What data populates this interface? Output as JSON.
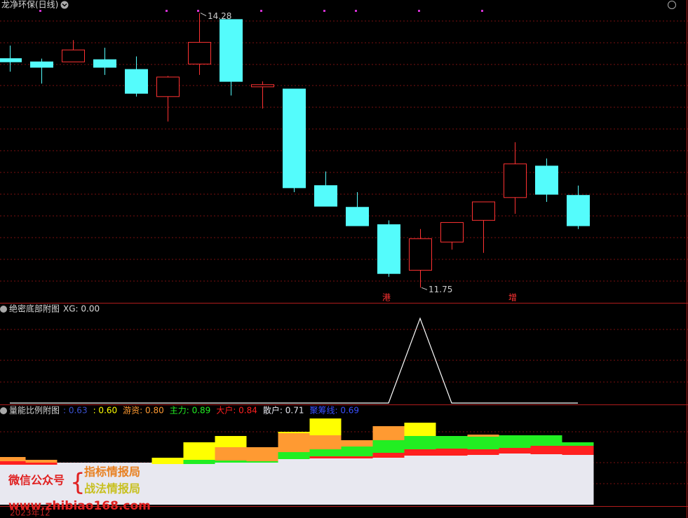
{
  "title": "龙净环保(日线)",
  "date_label": "2023年12",
  "watermark": {
    "left": "微信公众号",
    "brace": "{",
    "line1": "指标情报局",
    "line2": "战法情报局",
    "url": "www.zhibiao168.com"
  },
  "chart_data": [
    {
      "type": "candlestick",
      "up_color": "#ff3232",
      "down_color": "#54fcfc",
      "open": [
        13.86,
        13.83,
        13.83,
        13.85,
        13.76,
        13.51,
        13.81,
        14.22,
        13.6,
        13.58,
        12.69,
        12.49,
        12.33,
        11.91,
        12.17,
        12.37,
        12.58,
        12.87,
        12.6
      ],
      "high": [
        13.98,
        13.86,
        14.03,
        13.96,
        13.88,
        13.7,
        14.28,
        14.22,
        13.65,
        13.58,
        12.82,
        12.63,
        12.37,
        12.29,
        12.35,
        12.54,
        13.09,
        12.94,
        12.69
      ],
      "low": [
        13.74,
        13.63,
        13.83,
        13.71,
        13.51,
        13.28,
        13.71,
        13.52,
        13.4,
        12.63,
        12.5,
        12.32,
        11.85,
        11.75,
        12.1,
        12.07,
        12.43,
        12.54,
        12.29
      ],
      "close": [
        13.83,
        13.78,
        13.94,
        13.78,
        13.54,
        13.69,
        14.01,
        13.65,
        13.62,
        12.67,
        12.5,
        12.32,
        11.88,
        12.2,
        12.35,
        12.54,
        12.89,
        12.61,
        12.32
      ],
      "ylim": [
        11.61,
        14.4
      ],
      "annotations": [
        {
          "text": "14.28",
          "value": 14.28
        },
        {
          "text": "11.75",
          "value": 11.75
        }
      ],
      "markers": [
        null,
        null,
        null,
        null,
        null,
        null,
        null,
        null,
        null,
        null,
        null,
        null,
        "港",
        null,
        null,
        null,
        "增",
        null,
        null
      ],
      "marker_color": "#ff3232"
    },
    {
      "type": "line",
      "title": "绝密底部附图",
      "legend": "XG: 0.00",
      "color": "#ffffff",
      "values": [
        0,
        0,
        0,
        0,
        0,
        0,
        0,
        0,
        0,
        0,
        0,
        0,
        0,
        1,
        0,
        0,
        0,
        0,
        0
      ],
      "ylim": [
        0,
        1.2
      ]
    },
    {
      "type": "overlap-bar",
      "title": "量能比例附图",
      "legend": [
        {
          "text": ": 0.63",
          "color": "#3a50d0"
        },
        {
          "text": ": 0.60",
          "color": "#ffff00"
        },
        {
          "text": "游资: 0.80",
          "color": "#ff9a32"
        },
        {
          "text": "主力: 0.89",
          "color": "#22ee22"
        },
        {
          "text": "大户: 0.84",
          "color": "#ff2020"
        },
        {
          "text": "散户: 0.71",
          "color": "#e8e8f0"
        },
        {
          "text": "聚筹线: 0.69",
          "color": "#3a50ff"
        }
      ],
      "series": [
        {
          "color": "#ffff00",
          "values": [
            0.5,
            0.5,
            0.55,
            0.55,
            0.55,
            0.67,
            0.89,
            0.98,
            0.7,
            1.04,
            1.23,
            0.8,
            0.9,
            1.17,
            0.8,
            0.8,
            0.8,
            0.7,
            0.6
          ]
        },
        {
          "color": "#ff9a32",
          "values": [
            0.68,
            0.64,
            0.55,
            0.55,
            0.55,
            0.55,
            0.6,
            0.82,
            0.82,
            1.02,
            0.99,
            0.92,
            1.12,
            0.9,
            0.9,
            1.0,
            0.9,
            0.85,
            0.8
          ]
        },
        {
          "color": "#22ee22",
          "values": [
            0.5,
            0.5,
            0.55,
            0.55,
            0.55,
            0.55,
            0.64,
            0.63,
            0.62,
            0.75,
            0.79,
            0.83,
            0.92,
            0.98,
            0.98,
            0.97,
            0.99,
            0.99,
            0.89
          ]
        },
        {
          "color": "#ff2020",
          "values": [
            0.62,
            0.6,
            0.55,
            0.55,
            0.55,
            0.55,
            0.55,
            0.58,
            0.58,
            0.6,
            0.69,
            0.69,
            0.74,
            0.79,
            0.8,
            0.79,
            0.81,
            0.84,
            0.84
          ]
        },
        {
          "color": "#e8e8f0",
          "values": [
            0.57,
            0.57,
            0.6,
            0.6,
            0.6,
            0.58,
            0.58,
            0.6,
            0.6,
            0.65,
            0.66,
            0.66,
            0.67,
            0.7,
            0.7,
            0.71,
            0.73,
            0.72,
            0.71
          ]
        }
      ],
      "ylim": [
        0,
        1.43
      ]
    }
  ]
}
